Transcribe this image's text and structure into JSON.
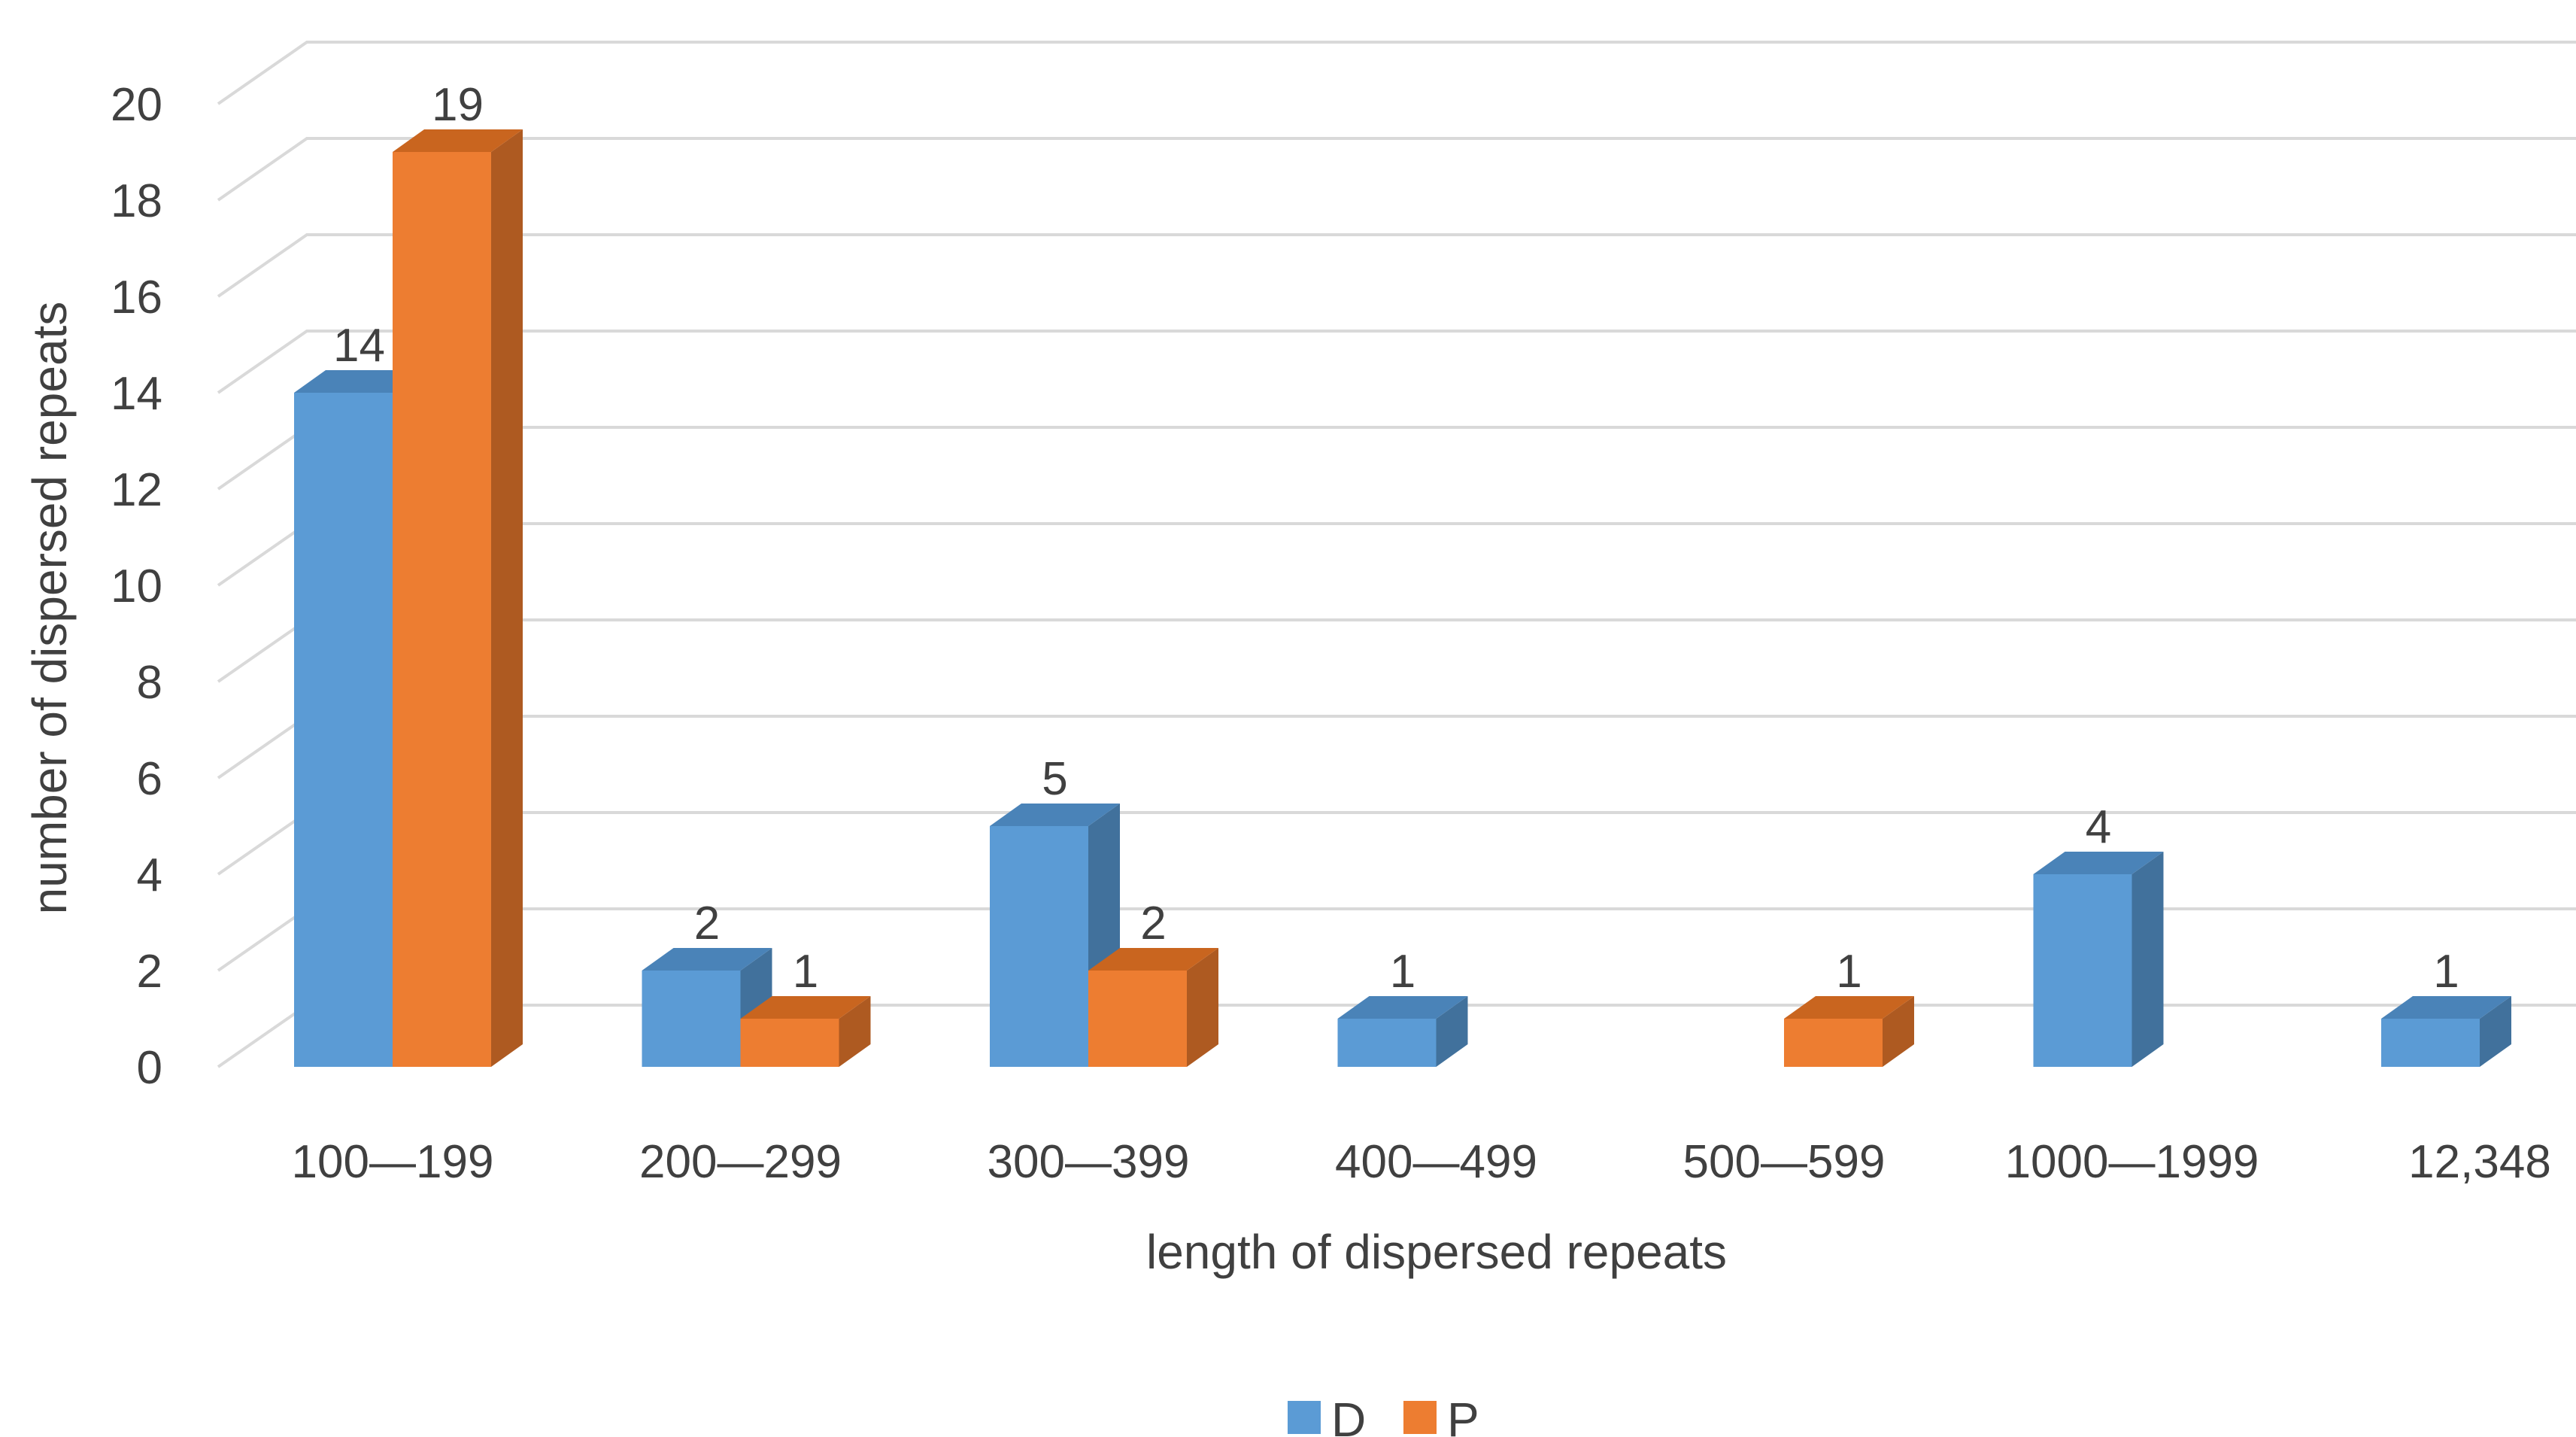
{
  "chart_data": {
    "type": "bar",
    "title": "",
    "xlabel": "length of dispersed repeats",
    "ylabel": "number of dispersed repeats",
    "categories": [
      "100—199",
      "200—299",
      "300—399",
      "400—499",
      "500—599",
      "1000—1999",
      "12,348"
    ],
    "series": [
      {
        "name": "D",
        "values": [
          14,
          2,
          5,
          1,
          null,
          4,
          1
        ],
        "color": "#5B9BD5",
        "side_color": "#41719C",
        "top_color": "#4A83B8"
      },
      {
        "name": "P",
        "values": [
          19,
          1,
          2,
          null,
          1,
          null,
          null
        ],
        "color": "#ED7D31",
        "side_color": "#AE5A21",
        "top_color": "#C9651F"
      }
    ],
    "ylim": [
      0,
      20
    ],
    "yticks": [
      0,
      2,
      4,
      6,
      8,
      10,
      12,
      14,
      16,
      18,
      20
    ],
    "data_labels": true,
    "grid": true,
    "style": "3d-clustered-column",
    "legend": {
      "position": "bottom",
      "entries": [
        "D",
        "P"
      ]
    }
  }
}
